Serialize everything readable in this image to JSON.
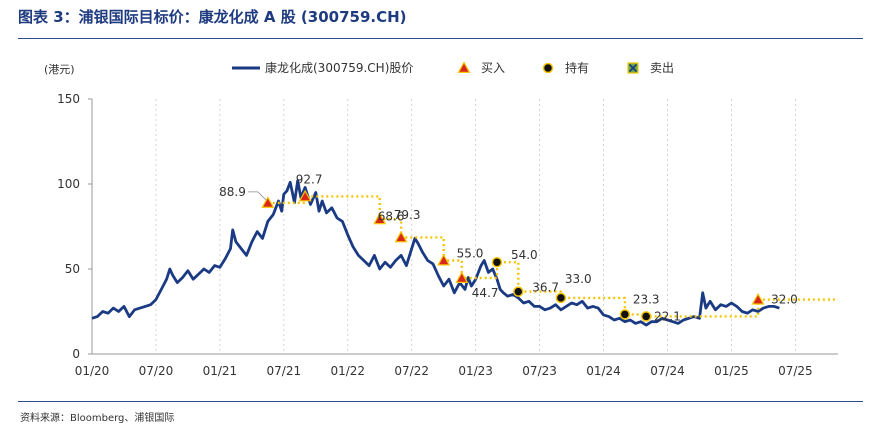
{
  "figure": {
    "title": "图表 3：浦银国际目标价：康龙化成 A 股 (300759.CH)",
    "source": "资料来源：Bloomberg、浦银国际"
  },
  "chart_data": {
    "type": "line",
    "ylabel": "(港元)",
    "ylim": [
      0,
      150
    ],
    "yticks": [
      0,
      50,
      100,
      150
    ],
    "xlim": [
      0,
      70
    ],
    "xticks": [
      {
        "t": 0,
        "label": "01/20"
      },
      {
        "t": 6,
        "label": "07/20"
      },
      {
        "t": 12,
        "label": "01/21"
      },
      {
        "t": 18,
        "label": "07/21"
      },
      {
        "t": 24,
        "label": "01/22"
      },
      {
        "t": 30,
        "label": "07/22"
      },
      {
        "t": 36,
        "label": "01/23"
      },
      {
        "t": 42,
        "label": "07/23"
      },
      {
        "t": 48,
        "label": "01/24"
      },
      {
        "t": 54,
        "label": "07/24"
      },
      {
        "t": 60,
        "label": "01/25"
      },
      {
        "t": 66,
        "label": "07/25"
      }
    ],
    "legend": [
      {
        "name": "康龙化成(300759.CH)股价",
        "kind": "line",
        "color": "#1b3a84"
      },
      {
        "name": "买入",
        "kind": "triangle",
        "color": "#d9261c"
      },
      {
        "name": "持有",
        "kind": "circle",
        "color": "#111111"
      },
      {
        "name": "卖出",
        "kind": "xbox",
        "color": "#6aa84f"
      }
    ],
    "series": [
      {
        "name": "康龙化成(300759.CH)股价",
        "color": "#1b3a84",
        "points": [
          [
            0,
            21
          ],
          [
            0.5,
            22
          ],
          [
            1,
            25
          ],
          [
            1.5,
            24
          ],
          [
            2,
            27
          ],
          [
            2.5,
            25
          ],
          [
            3,
            28
          ],
          [
            3.5,
            22
          ],
          [
            4,
            26
          ],
          [
            4.5,
            27
          ],
          [
            5,
            28
          ],
          [
            5.5,
            29
          ],
          [
            6,
            32
          ],
          [
            6.5,
            38
          ],
          [
            7,
            44
          ],
          [
            7.3,
            50
          ],
          [
            7.6,
            46
          ],
          [
            8,
            42
          ],
          [
            8.5,
            45
          ],
          [
            9,
            49
          ],
          [
            9.5,
            44
          ],
          [
            10,
            47
          ],
          [
            10.5,
            50
          ],
          [
            11,
            48
          ],
          [
            11.5,
            52
          ],
          [
            12,
            51
          ],
          [
            12.5,
            56
          ],
          [
            13,
            62
          ],
          [
            13.2,
            73
          ],
          [
            13.5,
            66
          ],
          [
            14,
            62
          ],
          [
            14.5,
            58
          ],
          [
            15,
            66
          ],
          [
            15.5,
            72
          ],
          [
            16,
            68
          ],
          [
            16.5,
            78
          ],
          [
            17,
            82
          ],
          [
            17.5,
            90
          ],
          [
            17.8,
            84
          ],
          [
            18,
            94
          ],
          [
            18.3,
            96
          ],
          [
            18.6,
            101
          ],
          [
            19,
            89
          ],
          [
            19.3,
            102
          ],
          [
            19.6,
            92
          ],
          [
            20,
            98
          ],
          [
            20.5,
            88
          ],
          [
            21,
            95
          ],
          [
            21.3,
            84
          ],
          [
            21.6,
            90
          ],
          [
            22,
            83
          ],
          [
            22.5,
            86
          ],
          [
            23,
            80
          ],
          [
            23.5,
            78
          ],
          [
            24,
            70
          ],
          [
            24.5,
            63
          ],
          [
            25,
            58
          ],
          [
            25.5,
            55
          ],
          [
            26,
            52
          ],
          [
            26.5,
            58
          ],
          [
            27,
            50
          ],
          [
            27.5,
            54
          ],
          [
            28,
            51
          ],
          [
            28.5,
            55
          ],
          [
            29,
            58
          ],
          [
            29.5,
            52
          ],
          [
            30,
            62
          ],
          [
            30.3,
            68
          ],
          [
            30.6,
            65
          ],
          [
            31,
            60
          ],
          [
            31.5,
            55
          ],
          [
            32,
            53
          ],
          [
            32.5,
            46
          ],
          [
            33,
            40
          ],
          [
            33.5,
            44
          ],
          [
            34,
            36
          ],
          [
            34.5,
            42
          ],
          [
            35,
            38
          ],
          [
            35.3,
            45
          ],
          [
            35.6,
            40
          ],
          [
            36,
            44
          ],
          [
            36.5,
            52
          ],
          [
            36.8,
            55
          ],
          [
            37.2,
            48
          ],
          [
            37.6,
            50
          ],
          [
            38,
            44
          ],
          [
            38.3,
            38
          ],
          [
            38.6,
            36
          ],
          [
            39,
            34
          ],
          [
            39.5,
            35
          ],
          [
            40,
            33
          ],
          [
            40.5,
            30
          ],
          [
            41,
            31
          ],
          [
            41.5,
            28
          ],
          [
            42,
            28
          ],
          [
            42.5,
            26
          ],
          [
            43,
            27
          ],
          [
            43.5,
            29
          ],
          [
            44,
            26
          ],
          [
            44.5,
            28
          ],
          [
            45,
            30
          ],
          [
            45.5,
            29
          ],
          [
            46,
            31
          ],
          [
            46.5,
            27
          ],
          [
            47,
            28
          ],
          [
            47.5,
            27
          ],
          [
            48,
            23
          ],
          [
            48.5,
            22
          ],
          [
            49,
            20
          ],
          [
            49.5,
            21
          ],
          [
            50,
            19
          ],
          [
            50.5,
            20
          ],
          [
            51,
            18
          ],
          [
            51.5,
            19
          ],
          [
            52,
            17
          ],
          [
            52.5,
            19
          ],
          [
            53,
            19
          ],
          [
            53.5,
            21
          ],
          [
            54,
            20
          ],
          [
            54.5,
            19
          ],
          [
            55,
            18
          ],
          [
            55.5,
            20
          ],
          [
            56,
            21
          ],
          [
            56.5,
            22
          ],
          [
            57,
            21
          ],
          [
            57.3,
            36
          ],
          [
            57.6,
            27
          ],
          [
            58,
            31
          ],
          [
            58.5,
            26
          ],
          [
            59,
            29
          ],
          [
            59.5,
            28
          ],
          [
            60,
            30
          ],
          [
            60.5,
            28
          ],
          [
            61,
            25
          ],
          [
            61.5,
            24
          ],
          [
            62,
            26
          ],
          [
            62.5,
            25
          ],
          [
            63,
            27
          ],
          [
            63.5,
            28
          ],
          [
            64,
            28
          ],
          [
            64.5,
            27
          ]
        ]
      },
      {
        "name": "目标价",
        "color": "#f5c400",
        "style": "dotted",
        "points": [
          [
            16.5,
            88.9
          ],
          [
            20,
            88.9
          ],
          [
            20,
            92.7
          ],
          [
            27,
            92.7
          ],
          [
            27,
            79.3
          ],
          [
            29,
            79.3
          ],
          [
            29,
            68.6
          ],
          [
            33,
            68.6
          ],
          [
            33,
            55.0
          ],
          [
            34.7,
            55.0
          ],
          [
            34.7,
            44.7
          ],
          [
            38,
            44.7
          ],
          [
            38,
            54.0
          ],
          [
            40,
            54.0
          ],
          [
            40,
            36.7
          ],
          [
            44,
            36.7
          ],
          [
            44,
            33.0
          ],
          [
            50,
            33.0
          ],
          [
            50,
            23.3
          ],
          [
            52,
            23.3
          ],
          [
            52,
            22.1
          ],
          [
            62.5,
            22.1
          ],
          [
            62.5,
            32.0
          ],
          [
            70,
            32.0
          ]
        ]
      }
    ],
    "markers": [
      {
        "t": 16.5,
        "v": 88.9,
        "kind": "buy",
        "label": "88.9"
      },
      {
        "t": 20,
        "v": 92.7,
        "kind": "buy",
        "label": "92.7"
      },
      {
        "t": 27,
        "v": 79.3,
        "kind": "buy",
        "label": "79.3"
      },
      {
        "t": 29,
        "v": 68.6,
        "kind": "buy",
        "label": "68.6"
      },
      {
        "t": 33,
        "v": 55.0,
        "kind": "buy",
        "label": "55.0"
      },
      {
        "t": 34.7,
        "v": 44.7,
        "kind": "buy",
        "label": "44.7"
      },
      {
        "t": 38,
        "v": 54.0,
        "kind": "hold",
        "label": "54.0"
      },
      {
        "t": 40,
        "v": 36.7,
        "kind": "hold",
        "label": "36.7"
      },
      {
        "t": 44,
        "v": 33.0,
        "kind": "hold",
        "label": "33.0"
      },
      {
        "t": 50,
        "v": 23.3,
        "kind": "hold",
        "label": "23.3"
      },
      {
        "t": 52,
        "v": 22.1,
        "kind": "hold",
        "label": "22.1"
      },
      {
        "t": 62.5,
        "v": 32.0,
        "kind": "buy",
        "label": "32.0"
      }
    ]
  }
}
